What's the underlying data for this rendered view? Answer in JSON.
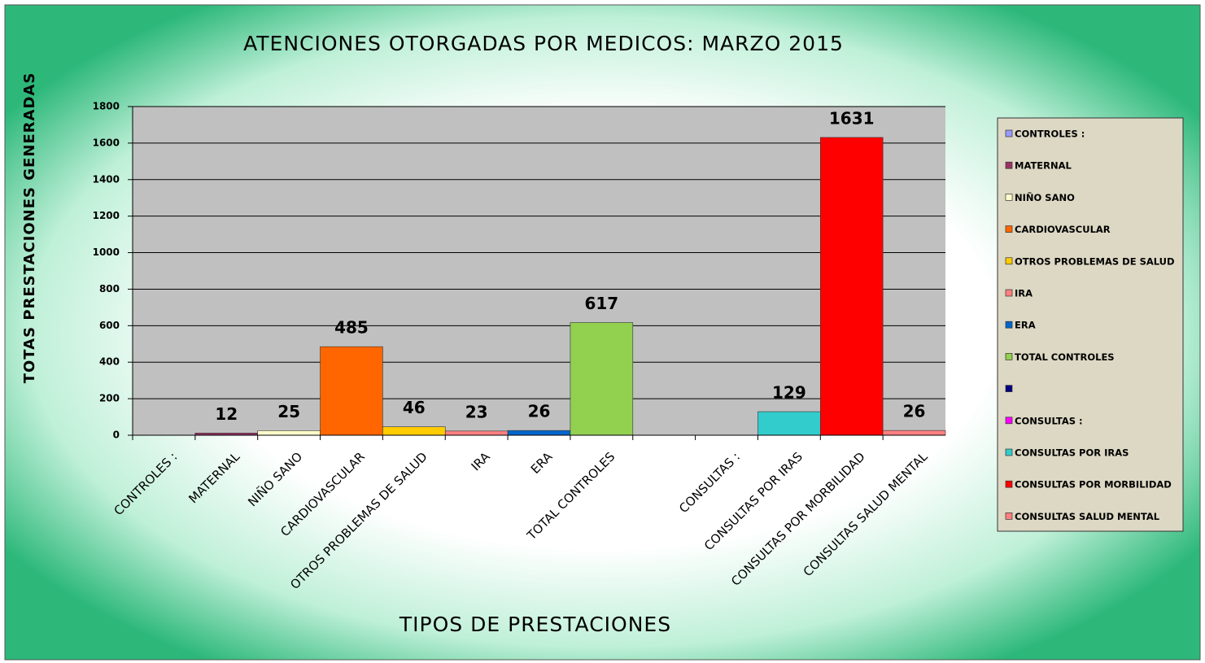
{
  "chart_data": {
    "type": "bar",
    "title": "ATENCIONES OTORGADAS  POR MEDICOS: MARZO 2015",
    "x_label": "TIPOS DE  PRESTACIONES",
    "y_label": "TOTAS PRESTACIONES  GENERADAS",
    "categories": [
      "CONTROLES :",
      "MATERNAL",
      "NIÑO SANO",
      "CARDIOVASCULAR",
      "OTROS PROBLEMAS DE SALUD",
      "IRA",
      "ERA",
      "TOTAL CONTROLES",
      null,
      "CONSULTAS :",
      "CONSULTAS POR IRAS",
      "CONSULTAS POR MORBILIDAD",
      "CONSULTAS SALUD MENTAL"
    ],
    "values": [
      null,
      12,
      25,
      485,
      46,
      23,
      26,
      617,
      null,
      null,
      129,
      1631,
      26
    ],
    "colors": [
      "#9999ff",
      "#993366",
      "#ffffcc",
      "#ff6600",
      "#ffcc00",
      "#ff8080",
      "#0066cc",
      "#92d050",
      "#000080",
      "#ff00ff",
      "#33cccc",
      "#ff0000",
      "#ff8080"
    ],
    "legend": [
      "CONTROLES :",
      "MATERNAL",
      "NIÑO SANO",
      "CARDIOVASCULAR",
      "OTROS PROBLEMAS DE SALUD",
      "IRA",
      "ERA",
      "TOTAL CONTROLES",
      null,
      "CONSULTAS :",
      "CONSULTAS  POR IRAS",
      "CONSULTAS POR MORBILIDAD",
      "CONSULTAS SALUD MENTAL"
    ],
    "ylim": [
      0,
      1800
    ],
    "yticks": [
      0,
      200,
      400,
      600,
      800,
      1000,
      1200,
      1400,
      1600,
      1800
    ],
    "grid": true,
    "legend_position": "right"
  }
}
